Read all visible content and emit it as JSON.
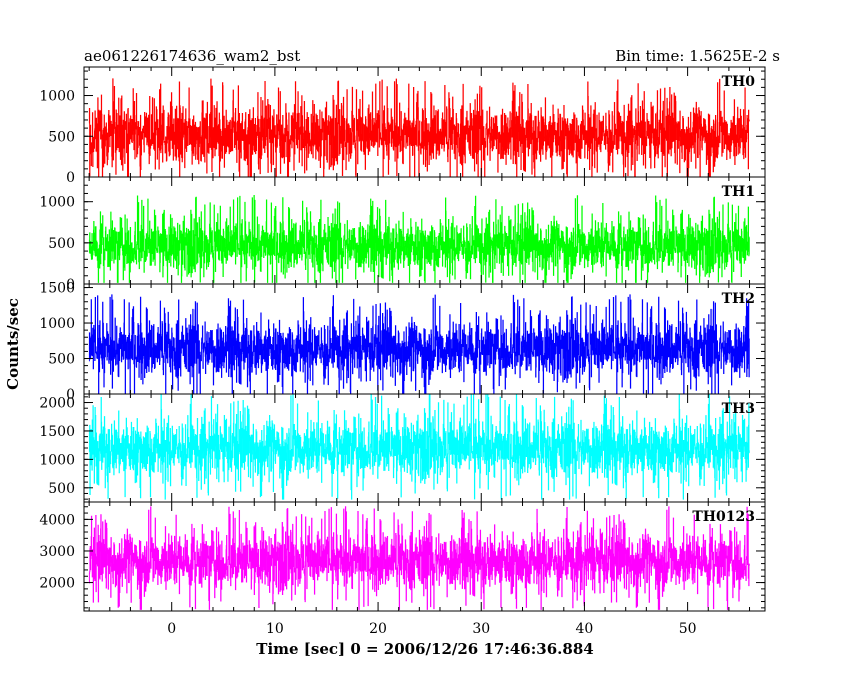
{
  "header": {
    "object_name": "ae061226174636_wam2_bst",
    "bin_time": "Bin time: 1.5625E-2 s"
  },
  "chart_data": {
    "type": "line",
    "subtype": "stacked light curves (histogram step)",
    "xlabel": "Time [sec] 0 = 2006/12/26 17:46:36.884",
    "ylabel": "Counts/sec",
    "xlim": [
      -8.5,
      57.5
    ],
    "data_x_range": [
      -8,
      56
    ],
    "x_ticks": [
      0,
      10,
      20,
      30,
      40,
      50
    ],
    "x_tick_labels": [
      "0",
      "10",
      "20",
      "30",
      "40",
      "50"
    ],
    "x_minor_tick_step": 2,
    "bin_time_s": 0.015625,
    "grid": false,
    "panels": [
      {
        "name": "TH0",
        "color": "#ff0000",
        "ylim": [
          0,
          1350
        ],
        "y_ticks": [
          0,
          500,
          1000
        ],
        "y_tick_labels": [
          "0",
          "500",
          "1000"
        ],
        "y_minor_tick_step": 100,
        "series": {
          "mean": 520,
          "min": 5,
          "max": 1350,
          "spread": 180
        }
      },
      {
        "name": "TH1",
        "color": "#00ff00",
        "ylim": [
          0,
          1300
        ],
        "y_ticks": [
          0,
          500,
          1000
        ],
        "y_tick_labels": [
          "0",
          "500",
          "1000"
        ],
        "y_minor_tick_step": 100,
        "series": {
          "mean": 470,
          "min": 20,
          "max": 1300,
          "spread": 160
        }
      },
      {
        "name": "TH2",
        "color": "#0000ff",
        "ylim": [
          0,
          1550
        ],
        "y_ticks": [
          0,
          500,
          1000,
          1500
        ],
        "y_tick_labels": [
          "0",
          "500",
          "1000",
          "1500"
        ],
        "y_minor_tick_step": 100,
        "series": {
          "mean": 640,
          "min": 10,
          "max": 1550,
          "spread": 200
        }
      },
      {
        "name": "TH3",
        "color": "#00ffff",
        "ylim": [
          250,
          2150
        ],
        "y_ticks": [
          500,
          1000,
          1500,
          2000
        ],
        "y_tick_labels": [
          "500",
          "1000",
          "1500",
          "2000"
        ],
        "y_minor_tick_step": 100,
        "series": {
          "mean": 1200,
          "min": 300,
          "max": 2150,
          "spread": 260
        }
      },
      {
        "name": "TH0123",
        "color": "#ff00ff",
        "ylim": [
          1100,
          4550
        ],
        "y_ticks": [
          2000,
          3000,
          4000
        ],
        "y_tick_labels": [
          "2000",
          "3000",
          "4000"
        ],
        "y_minor_tick_step": 200,
        "series": {
          "mean": 2700,
          "min": 1150,
          "max": 4500,
          "spread": 450
        }
      }
    ]
  }
}
